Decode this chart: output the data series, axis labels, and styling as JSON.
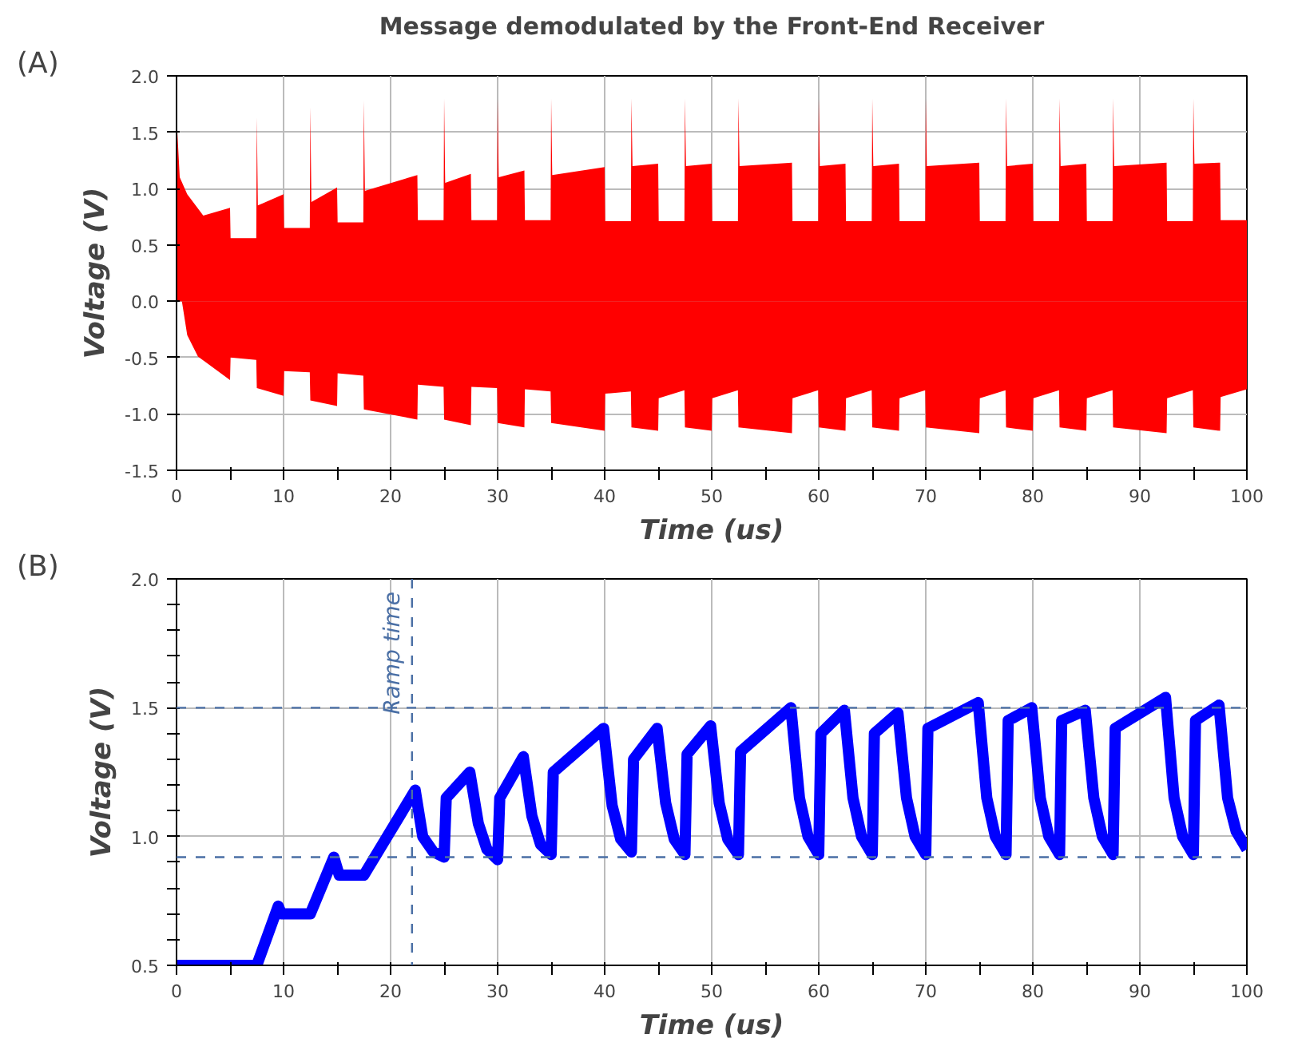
{
  "chart_data": [
    {
      "type": "area",
      "title": "Message demodulated by the Front-End Receiver",
      "xlabel": "Time (us)",
      "ylabel": "Voltage (V)",
      "annotations": [
        "(A)"
      ],
      "xlim": [
        0,
        100
      ],
      "xticks": [
        0,
        {
          "value": 5,
          "label": null
        },
        10,
        {
          "value": 15,
          "label": null
        },
        20,
        {
          "value": 25,
          "label": null
        },
        30,
        {
          "value": 35,
          "label": null
        },
        40,
        {
          "value": 45,
          "label": null
        },
        50,
        {
          "value": 55,
          "label": null
        },
        60,
        {
          "value": 65,
          "label": null
        },
        70,
        {
          "value": 75,
          "label": null
        },
        80,
        {
          "value": 85,
          "label": null
        },
        90,
        {
          "value": 95,
          "label": null
        },
        100
      ],
      "ylim": [
        -1.5,
        2.0
      ],
      "yticks": [
        {
          "value": -1.5,
          "label": "-1.5"
        },
        {
          "value": -1.0,
          "label": "-1.0"
        },
        {
          "value": -0.5,
          "label": "-0.5"
        },
        {
          "value": 0,
          "label": "0.0"
        },
        {
          "value": 0.5,
          "label": "0.5"
        },
        {
          "value": 1.0,
          "label": "1.0"
        },
        {
          "value": 1.5,
          "label": "1.5"
        },
        {
          "value": 2.0,
          "label": "2.0"
        }
      ],
      "grid": true,
      "series": [
        {
          "color": "#ff0000",
          "x": [
            0,
            0.05,
            0.3,
            1,
            2.5,
            5,
            5.05,
            7.45,
            7.5,
            7.6,
            10,
            10.05,
            12.45,
            12.5,
            12.6,
            15,
            15.05,
            17.45,
            17.5,
            17.6,
            22.5,
            22.55,
            24.95,
            25,
            25.1,
            27.5,
            27.55,
            29.95,
            30,
            30.1,
            32.5,
            32.55,
            34.95,
            35,
            35.1,
            40,
            40.05,
            42.45,
            42.5,
            42.6,
            45,
            45.05,
            47.45,
            47.5,
            47.6,
            50,
            50.05,
            52.45,
            52.5,
            52.6,
            57.5,
            57.55,
            59.95,
            60,
            60.1,
            62.5,
            62.55,
            64.95,
            65,
            65.1,
            67.5,
            67.55,
            69.95,
            70,
            70.1,
            75,
            75.05,
            77.45,
            77.5,
            77.6,
            80,
            80.05,
            82.45,
            82.5,
            82.6,
            85,
            85.05,
            87.45,
            87.5,
            87.6,
            92.5,
            92.55,
            94.95,
            95,
            95.1,
            97.5,
            97.55,
            100
          ],
          "values": [
            2.0,
            1.55,
            1.1,
            0.95,
            0.76,
            0.83,
            0.56,
            0.56,
            1.63,
            0.85,
            0.95,
            0.65,
            0.65,
            1.72,
            0.88,
            1.01,
            0.7,
            0.7,
            1.78,
            0.98,
            1.12,
            0.72,
            0.72,
            1.8,
            1.05,
            1.13,
            0.72,
            0.72,
            1.8,
            1.1,
            1.16,
            0.72,
            0.72,
            1.8,
            1.12,
            1.19,
            0.71,
            0.71,
            1.8,
            1.2,
            1.22,
            0.71,
            0.71,
            1.8,
            1.2,
            1.22,
            0.71,
            0.71,
            1.8,
            1.2,
            1.23,
            0.71,
            0.71,
            1.8,
            1.2,
            1.22,
            0.71,
            0.71,
            1.8,
            1.2,
            1.22,
            0.71,
            0.71,
            1.8,
            1.2,
            1.23,
            0.71,
            0.71,
            1.8,
            1.2,
            1.22,
            0.71,
            0.71,
            1.8,
            1.2,
            1.22,
            0.71,
            0.71,
            1.8,
            1.2,
            1.23,
            0.71,
            0.71,
            1.8,
            1.22,
            1.23,
            0.72,
            0.72
          ]
        },
        {
          "color": "#ff0000",
          "x": [
            0,
            0.5,
            1,
            2,
            5,
            5.05,
            7.45,
            7.5,
            10,
            10.05,
            12.45,
            12.5,
            15,
            15.05,
            17.45,
            17.5,
            22.5,
            22.55,
            24.95,
            25,
            27.5,
            27.55,
            29.95,
            30,
            32.5,
            32.55,
            34.95,
            35,
            40,
            40.05,
            42.45,
            42.5,
            45,
            45.05,
            47.45,
            47.5,
            50,
            50.05,
            52.45,
            52.5,
            57.5,
            57.55,
            59.95,
            60,
            62.5,
            62.55,
            64.95,
            65,
            67.5,
            67.55,
            69.95,
            70,
            75,
            75.05,
            77.45,
            77.5,
            80,
            80.05,
            82.45,
            82.5,
            85,
            85.05,
            87.45,
            87.5,
            92.5,
            92.55,
            94.95,
            95,
            97.5,
            97.55,
            100
          ],
          "values": [
            0.3,
            0.0,
            -0.3,
            -0.49,
            -0.7,
            -0.5,
            -0.52,
            -0.77,
            -0.84,
            -0.62,
            -0.63,
            -0.88,
            -0.93,
            -0.64,
            -0.66,
            -0.96,
            -1.05,
            -0.74,
            -0.76,
            -1.05,
            -1.1,
            -0.76,
            -0.77,
            -1.08,
            -1.12,
            -0.78,
            -0.8,
            -1.08,
            -1.15,
            -0.82,
            -0.8,
            -1.12,
            -1.15,
            -0.86,
            -0.79,
            -1.12,
            -1.15,
            -0.86,
            -0.79,
            -1.12,
            -1.17,
            -0.86,
            -0.79,
            -1.12,
            -1.15,
            -0.86,
            -0.79,
            -1.12,
            -1.15,
            -0.86,
            -0.79,
            -1.12,
            -1.17,
            -0.86,
            -0.79,
            -1.12,
            -1.15,
            -0.86,
            -0.79,
            -1.12,
            -1.15,
            -0.86,
            -0.79,
            -1.12,
            -1.17,
            -0.86,
            -0.79,
            -1.12,
            -1.15,
            -0.85,
            -0.78
          ]
        }
      ]
    },
    {
      "type": "line",
      "xlabel": "Time (us)",
      "ylabel": "Voltage (V)",
      "annotations": [
        "(B)"
      ],
      "xlim": [
        0,
        100
      ],
      "xticks": [
        0,
        {
          "value": 5,
          "label": null
        },
        10,
        {
          "value": 15,
          "label": null
        },
        20,
        {
          "value": 25,
          "label": null
        },
        30,
        {
          "value": 35,
          "label": null
        },
        40,
        {
          "value": 45,
          "label": null
        },
        50,
        {
          "value": 55,
          "label": null
        },
        60,
        {
          "value": 65,
          "label": null
        },
        70,
        {
          "value": 75,
          "label": null
        },
        80,
        {
          "value": 85,
          "label": null
        },
        90,
        {
          "value": 95,
          "label": null
        },
        100
      ],
      "ylim": [
        0.5,
        2.0
      ],
      "yticks": [
        0.5,
        {
          "value": 0.6,
          "label": null
        },
        {
          "value": 0.7,
          "label": null
        },
        {
          "value": 0.8,
          "label": null
        },
        {
          "value": 0.9,
          "label": null
        },
        {
          "value": 1.0,
          "label": "1.0"
        },
        {
          "value": 1.1,
          "label": null
        },
        {
          "value": 1.2,
          "label": null
        },
        {
          "value": 1.3,
          "label": null
        },
        {
          "value": 1.4,
          "label": null
        },
        1.5,
        {
          "value": 1.6,
          "label": null
        },
        {
          "value": 1.7,
          "label": null
        },
        {
          "value": 1.8,
          "label": null
        },
        {
          "value": 1.9,
          "label": null
        },
        {
          "value": 2.0,
          "label": "2.0"
        }
      ],
      "grid": true,
      "ref_lines": [
        {
          "axis": "y",
          "value": 1.5,
          "label": null,
          "color": "#4a6fa5",
          "line_style": "dashed"
        },
        {
          "axis": "y",
          "value": 0.92,
          "label": null,
          "color": "#4a6fa5",
          "line_style": "dashed"
        },
        {
          "axis": "x",
          "value": 22,
          "label": "Ramp time",
          "color": "#4a6fa5",
          "line_style": "dashed"
        }
      ],
      "series": [
        {
          "color": "#0000ff",
          "x": [
            0,
            7.5,
            9.5,
            9.8,
            12.5,
            14.7,
            15.2,
            17.5,
            22.3,
            23.0,
            24.0,
            25,
            25.2,
            27.4,
            28.2,
            29,
            30,
            30.2,
            32.4,
            33.2,
            34,
            35,
            35.2,
            39.9,
            40.7,
            41.5,
            42.5,
            42.7,
            44.9,
            45.7,
            46.5,
            47.5,
            47.7,
            49.9,
            50.7,
            51.5,
            52.5,
            52.7,
            57.4,
            58.2,
            59,
            60,
            60.2,
            62.4,
            63.2,
            64,
            65,
            65.2,
            67.4,
            68.2,
            69,
            70,
            70.2,
            74.9,
            75.7,
            76.5,
            77.5,
            77.7,
            79.9,
            80.7,
            81.5,
            82.5,
            82.7,
            84.9,
            85.7,
            86.5,
            87.5,
            87.7,
            92.4,
            93.2,
            94,
            95,
            95.2,
            97.4,
            98.2,
            99,
            100
          ],
          "values": [
            0.5,
            0.5,
            0.73,
            0.7,
            0.7,
            0.92,
            0.85,
            0.85,
            1.18,
            1.0,
            0.94,
            0.92,
            1.15,
            1.25,
            1.05,
            0.95,
            0.91,
            1.15,
            1.31,
            1.08,
            0.97,
            0.93,
            1.25,
            1.42,
            1.12,
            0.99,
            0.94,
            1.3,
            1.42,
            1.13,
            0.99,
            0.93,
            1.32,
            1.43,
            1.13,
            0.99,
            0.93,
            1.33,
            1.5,
            1.15,
            1.0,
            0.93,
            1.4,
            1.49,
            1.15,
            1.0,
            0.93,
            1.4,
            1.48,
            1.15,
            1.0,
            0.93,
            1.42,
            1.52,
            1.15,
            1.0,
            0.93,
            1.45,
            1.5,
            1.15,
            1.0,
            0.93,
            1.45,
            1.49,
            1.15,
            1.0,
            0.93,
            1.42,
            1.54,
            1.15,
            1.0,
            0.93,
            1.45,
            1.51,
            1.15,
            1.02,
            0.95
          ]
        }
      ]
    }
  ]
}
